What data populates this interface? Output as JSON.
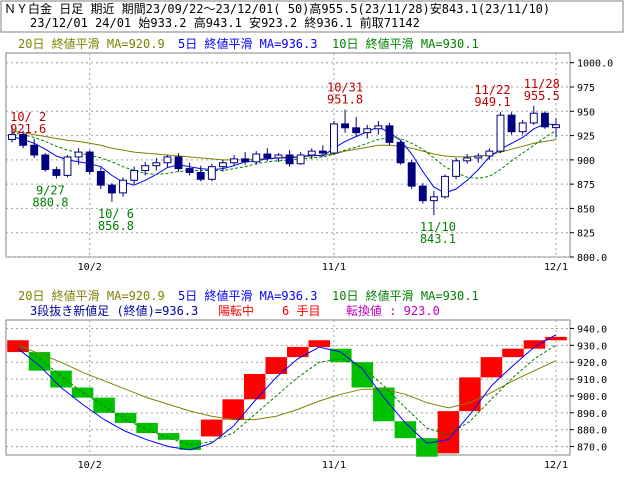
{
  "colors": {
    "panel_bg": "#FFFFFF",
    "grid": "#A0A0A0",
    "ma20": "#808000",
    "ma5": "#0000FF",
    "ma10": "#008000",
    "annotation_red": "#C00000",
    "annotation_green": "#008000",
    "candle_down": "#000080",
    "candle_up_outline": "#000080",
    "break_up": "#FF0000",
    "break_down": "#00C000",
    "break_magenta": "#C000C0",
    "header_title_bg": "#D8D8D8"
  },
  "header": {
    "line1": "ＮＹ白金 日足 期近 期間23/09/22〜23/12/01( 50)高955.5(23/11/28)安843.1(23/11/10)",
    "line2": "23/12/01 24/01 始933.2 高943.1 安923.2 終936.1 前取71142"
  },
  "legend": {
    "ma20": "20日 終値平滑 MA=920.9",
    "ma5": "5日 終値平滑 MA=936.3",
    "ma10": "10日 終値平滑 MA=930.1"
  },
  "lower_info": {
    "prefix": "3段抜き新値足 (終値)=936.3",
    "status": "陽転中",
    "count": "6 手目",
    "switch": "転換値 : 923.0"
  },
  "x_labels": [
    "10/2",
    "11/1",
    "12/1"
  ],
  "chart_data": [
    {
      "type": "candlestick",
      "title": "ＮＹ白金 日足 期近",
      "ylim": [
        800,
        1010
      ],
      "y_ticks": [
        "1000.0",
        "975",
        "950",
        "925",
        "900",
        "875",
        "850",
        "825",
        "800.0"
      ],
      "y_tick_values": [
        1000,
        975,
        950,
        925,
        900,
        875,
        850,
        825,
        800
      ],
      "annotations": [
        {
          "date_label": "10/ 2",
          "value_label": "921.6",
          "kind": "high"
        },
        {
          "date_label": "9/27",
          "value_label": "880.8",
          "kind": "low"
        },
        {
          "date_label": "10/ 6",
          "value_label": "856.8",
          "kind": "low"
        },
        {
          "date_label": "10/31",
          "value_label": "951.8",
          "kind": "high"
        },
        {
          "date_label": "11/10",
          "value_label": "843.1",
          "kind": "low"
        },
        {
          "date_label": "11/22",
          "value_label": "949.1",
          "kind": "high"
        },
        {
          "date_label": "11/28",
          "value_label": "955.5",
          "kind": "high"
        }
      ],
      "candles": [
        {
          "o": 921.0,
          "h": 935.0,
          "l": 918.0,
          "c": 926.0
        },
        {
          "o": 926.0,
          "h": 930.0,
          "l": 912.0,
          "c": 915.0
        },
        {
          "o": 915.0,
          "h": 921.6,
          "l": 902.0,
          "c": 905.0
        },
        {
          "o": 905.0,
          "h": 907.0,
          "l": 888.0,
          "c": 890.0
        },
        {
          "o": 890.0,
          "h": 893.0,
          "l": 880.8,
          "c": 884.0
        },
        {
          "o": 884.0,
          "h": 905.0,
          "l": 882.0,
          "c": 903.0
        },
        {
          "o": 903.0,
          "h": 912.0,
          "l": 895.0,
          "c": 908.0
        },
        {
          "o": 908.0,
          "h": 910.0,
          "l": 885.0,
          "c": 888.0
        },
        {
          "o": 888.0,
          "h": 892.0,
          "l": 870.0,
          "c": 874.0
        },
        {
          "o": 874.0,
          "h": 876.0,
          "l": 856.8,
          "c": 866.0
        },
        {
          "o": 866.0,
          "h": 882.0,
          "l": 862.0,
          "c": 879.0
        },
        {
          "o": 879.0,
          "h": 893.0,
          "l": 875.0,
          "c": 889.0
        },
        {
          "o": 889.0,
          "h": 898.0,
          "l": 884.0,
          "c": 894.0
        },
        {
          "o": 894.0,
          "h": 902.0,
          "l": 889.0,
          "c": 897.0
        },
        {
          "o": 897.0,
          "h": 905.0,
          "l": 892.0,
          "c": 903.0
        },
        {
          "o": 903.0,
          "h": 907.0,
          "l": 888.0,
          "c": 891.0
        },
        {
          "o": 891.0,
          "h": 897.0,
          "l": 884.0,
          "c": 887.0
        },
        {
          "o": 887.0,
          "h": 894.0,
          "l": 878.0,
          "c": 880.0
        },
        {
          "o": 880.0,
          "h": 896.0,
          "l": 878.0,
          "c": 893.0
        },
        {
          "o": 893.0,
          "h": 900.0,
          "l": 888.0,
          "c": 897.0
        },
        {
          "o": 897.0,
          "h": 905.0,
          "l": 894.0,
          "c": 901.0
        },
        {
          "o": 901.0,
          "h": 908.0,
          "l": 895.0,
          "c": 898.0
        },
        {
          "o": 898.0,
          "h": 909.0,
          "l": 895.0,
          "c": 906.0
        },
        {
          "o": 906.0,
          "h": 912.0,
          "l": 899.0,
          "c": 902.0
        },
        {
          "o": 902.0,
          "h": 907.0,
          "l": 898.0,
          "c": 905.0
        },
        {
          "o": 905.0,
          "h": 910.0,
          "l": 893.0,
          "c": 896.0
        },
        {
          "o": 896.0,
          "h": 908.0,
          "l": 895.0,
          "c": 905.0
        },
        {
          "o": 905.0,
          "h": 912.0,
          "l": 901.0,
          "c": 909.0
        },
        {
          "o": 909.0,
          "h": 915.0,
          "l": 904.0,
          "c": 907.0
        },
        {
          "o": 907.0,
          "h": 940.0,
          "l": 905.0,
          "c": 937.0
        },
        {
          "o": 937.0,
          "h": 951.8,
          "l": 928.0,
          "c": 933.0
        },
        {
          "o": 933.0,
          "h": 944.0,
          "l": 924.0,
          "c": 928.0
        },
        {
          "o": 928.0,
          "h": 936.0,
          "l": 922.0,
          "c": 932.0
        },
        {
          "o": 932.0,
          "h": 940.0,
          "l": 926.0,
          "c": 935.0
        },
        {
          "o": 935.0,
          "h": 938.0,
          "l": 915.0,
          "c": 918.0
        },
        {
          "o": 918.0,
          "h": 920.0,
          "l": 895.0,
          "c": 897.0
        },
        {
          "o": 897.0,
          "h": 900.0,
          "l": 870.0,
          "c": 873.0
        },
        {
          "o": 873.0,
          "h": 876.0,
          "l": 855.0,
          "c": 858.0
        },
        {
          "o": 858.0,
          "h": 868.0,
          "l": 843.1,
          "c": 862.0
        },
        {
          "o": 862.0,
          "h": 885.0,
          "l": 860.0,
          "c": 883.0
        },
        {
          "o": 883.0,
          "h": 902.0,
          "l": 880.0,
          "c": 899.0
        },
        {
          "o": 899.0,
          "h": 906.0,
          "l": 896.0,
          "c": 902.0
        },
        {
          "o": 902.0,
          "h": 907.0,
          "l": 897.0,
          "c": 904.0
        },
        {
          "o": 904.0,
          "h": 912.0,
          "l": 900.0,
          "c": 909.0
        },
        {
          "o": 909.0,
          "h": 949.1,
          "l": 907.0,
          "c": 946.0
        },
        {
          "o": 946.0,
          "h": 949.0,
          "l": 926.0,
          "c": 929.0
        },
        {
          "o": 929.0,
          "h": 941.0,
          "l": 926.0,
          "c": 938.0
        },
        {
          "o": 938.0,
          "h": 955.5,
          "l": 936.0,
          "c": 948.0
        },
        {
          "o": 948.0,
          "h": 950.0,
          "l": 932.0,
          "c": 934.0
        },
        {
          "o": 933.2,
          "h": 943.1,
          "l": 923.2,
          "c": 936.1
        }
      ],
      "series": [
        {
          "name": "20日 終値平滑 MA=920.9",
          "key": "ma20",
          "values": [
            930,
            928,
            926,
            924,
            922,
            920,
            919,
            917,
            915,
            912,
            910,
            908,
            907,
            906,
            905,
            904,
            903,
            902,
            901,
            900,
            900,
            900,
            901,
            901,
            902,
            903,
            903,
            904,
            905,
            906,
            909,
            911,
            913,
            915,
            915,
            914,
            912,
            909,
            906,
            904,
            903,
            903,
            904,
            905,
            908,
            911,
            914,
            917,
            919,
            920.9
          ]
        },
        {
          "name": "5日 終値平滑 MA=936.3",
          "key": "ma5",
          "values": [
            924,
            921,
            917,
            911,
            904,
            900,
            898,
            896,
            893,
            884,
            877,
            874,
            879,
            885,
            892,
            895,
            893,
            891,
            890,
            891,
            894,
            898,
            899,
            901,
            902,
            902,
            903,
            905,
            904,
            912,
            919,
            924,
            929,
            934,
            928,
            920,
            906,
            888,
            872,
            866,
            870,
            879,
            890,
            903,
            911,
            917,
            923,
            932,
            937,
            936.3
          ]
        },
        {
          "name": "10日 終値平滑 MA=930.1",
          "key": "ma10",
          "values": [
            928,
            926,
            923,
            919,
            914,
            910,
            907,
            905,
            902,
            898,
            893,
            889,
            886,
            885,
            886,
            888,
            889,
            889,
            889,
            889,
            891,
            893,
            896,
            898,
            899,
            900,
            901,
            902,
            903,
            906,
            910,
            913,
            917,
            921,
            923,
            922,
            917,
            911,
            902,
            893,
            887,
            882,
            881,
            883,
            890,
            899,
            907,
            915,
            923,
            930.1
          ]
        }
      ]
    },
    {
      "type": "three_line_break",
      "title": "3段抜き新値足 (終値)",
      "ylim": [
        865,
        945
      ],
      "y_ticks": [
        "940.0",
        "930.0",
        "920.0",
        "910.0",
        "900.0",
        "890.0",
        "880.0",
        "870.0"
      ],
      "y_tick_values": [
        940,
        930,
        920,
        910,
        900,
        890,
        880,
        870
      ],
      "bricks": [
        {
          "dir": "up",
          "bottom": 926,
          "top": 933
        },
        {
          "dir": "down",
          "top": 926,
          "bottom": 915
        },
        {
          "dir": "down",
          "top": 915,
          "bottom": 905
        },
        {
          "dir": "down",
          "top": 905,
          "bottom": 899
        },
        {
          "dir": "down",
          "top": 899,
          "bottom": 890
        },
        {
          "dir": "down",
          "top": 890,
          "bottom": 884
        },
        {
          "dir": "down",
          "top": 884,
          "bottom": 878
        },
        {
          "dir": "down",
          "top": 878,
          "bottom": 874
        },
        {
          "dir": "down",
          "top": 874,
          "bottom": 868
        },
        {
          "dir": "up",
          "bottom": 876,
          "top": 886
        },
        {
          "dir": "up",
          "bottom": 886,
          "top": 898
        },
        {
          "dir": "up",
          "bottom": 898,
          "top": 913
        },
        {
          "dir": "up",
          "bottom": 913,
          "top": 923
        },
        {
          "dir": "up",
          "bottom": 923,
          "top": 929
        },
        {
          "dir": "up",
          "bottom": 929,
          "top": 933
        },
        {
          "dir": "down",
          "top": 928,
          "bottom": 920
        },
        {
          "dir": "down",
          "top": 920,
          "bottom": 905
        },
        {
          "dir": "down",
          "top": 905,
          "bottom": 885
        },
        {
          "dir": "down",
          "top": 885,
          "bottom": 875
        },
        {
          "dir": "down",
          "top": 875,
          "bottom": 864
        },
        {
          "dir": "up",
          "bottom": 866,
          "top": 891
        },
        {
          "dir": "up",
          "bottom": 891,
          "top": 911
        },
        {
          "dir": "up",
          "bottom": 911,
          "top": 923
        },
        {
          "dir": "up",
          "bottom": 923,
          "top": 928
        },
        {
          "dir": "up",
          "bottom": 928,
          "top": 933
        },
        {
          "dir": "up",
          "bottom": 933,
          "top": 935
        }
      ],
      "series": [
        {
          "name": "20日 終値平滑 MA=920.9",
          "key": "ma20",
          "values": [
            930,
            925,
            920,
            914,
            909,
            904,
            899,
            895,
            891,
            888,
            886,
            886,
            888,
            892,
            897,
            901,
            904,
            904,
            901,
            896,
            893,
            896,
            902,
            909,
            915,
            920.9
          ]
        },
        {
          "name": "5日 終値平滑 MA=936.3",
          "key": "ma5",
          "values": [
            928,
            918,
            905,
            895,
            886,
            879,
            874,
            870,
            868,
            872,
            882,
            897,
            911,
            922,
            929,
            926,
            916,
            899,
            884,
            872,
            874,
            889,
            906,
            918,
            929,
            936.3
          ]
        },
        {
          "name": "10日 終値平滑 MA=930.1",
          "key": "ma10",
          "values": [
            930,
            922,
            912,
            902,
            894,
            886,
            880,
            875,
            871,
            873,
            878,
            889,
            900,
            911,
            920,
            922,
            917,
            906,
            893,
            881,
            877,
            885,
            898,
            911,
            922,
            930.1
          ]
        }
      ]
    }
  ]
}
